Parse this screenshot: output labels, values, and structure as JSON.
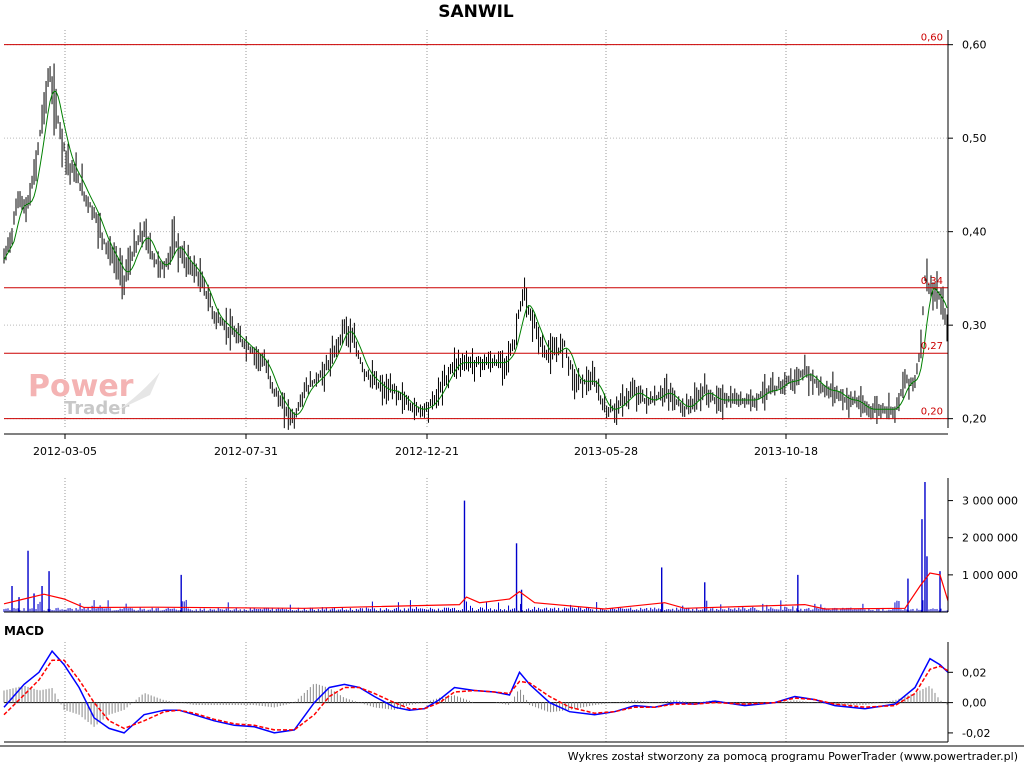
{
  "chart_data": [
    {
      "type": "line",
      "panel": "price",
      "title": "SANWIL",
      "x_ticks": [
        "2012-03-05",
        "2012-07-31",
        "2012-12-21",
        "2013-05-28",
        "2013-10-18"
      ],
      "y_ticks": [
        "0,60",
        "0,50",
        "0,40",
        "0,30",
        "0,20"
      ],
      "ylim": [
        0.19,
        0.605
      ],
      "horizontal_levels": [
        {
          "value": 0.6,
          "label": "0,60"
        },
        {
          "value": 0.34,
          "label": "0,34"
        },
        {
          "value": 0.27,
          "label": "0,27"
        },
        {
          "value": 0.2,
          "label": "0,20"
        }
      ],
      "price_keypoints": [
        [
          0,
          0.37
        ],
        [
          8,
          0.4
        ],
        [
          15,
          0.44
        ],
        [
          22,
          0.42
        ],
        [
          30,
          0.46
        ],
        [
          38,
          0.52
        ],
        [
          45,
          0.57
        ],
        [
          50,
          0.54
        ],
        [
          58,
          0.5
        ],
        [
          65,
          0.47
        ],
        [
          72,
          0.46
        ],
        [
          80,
          0.44
        ],
        [
          90,
          0.42
        ],
        [
          100,
          0.39
        ],
        [
          110,
          0.37
        ],
        [
          120,
          0.35
        ],
        [
          130,
          0.38
        ],
        [
          140,
          0.4
        ],
        [
          150,
          0.37
        ],
        [
          160,
          0.36
        ],
        [
          170,
          0.39
        ],
        [
          180,
          0.37
        ],
        [
          190,
          0.36
        ],
        [
          200,
          0.34
        ],
        [
          210,
          0.31
        ],
        [
          220,
          0.3
        ],
        [
          230,
          0.29
        ],
        [
          240,
          0.28
        ],
        [
          250,
          0.27
        ],
        [
          260,
          0.26
        ],
        [
          270,
          0.23
        ],
        [
          280,
          0.21
        ],
        [
          290,
          0.2
        ],
        [
          300,
          0.23
        ],
        [
          310,
          0.24
        ],
        [
          320,
          0.25
        ],
        [
          330,
          0.27
        ],
        [
          340,
          0.3
        ],
        [
          350,
          0.28
        ],
        [
          360,
          0.25
        ],
        [
          370,
          0.24
        ],
        [
          380,
          0.23
        ],
        [
          390,
          0.23
        ],
        [
          400,
          0.22
        ],
        [
          410,
          0.21
        ],
        [
          420,
          0.21
        ],
        [
          430,
          0.22
        ],
        [
          440,
          0.24
        ],
        [
          450,
          0.26
        ],
        [
          460,
          0.26
        ],
        [
          470,
          0.26
        ],
        [
          480,
          0.26
        ],
        [
          490,
          0.26
        ],
        [
          500,
          0.26
        ],
        [
          510,
          0.28
        ],
        [
          515,
          0.32
        ],
        [
          520,
          0.33
        ],
        [
          525,
          0.31
        ],
        [
          530,
          0.3
        ],
        [
          540,
          0.27
        ],
        [
          550,
          0.27
        ],
        [
          560,
          0.28
        ],
        [
          570,
          0.24
        ],
        [
          580,
          0.24
        ],
        [
          590,
          0.24
        ],
        [
          600,
          0.21
        ],
        [
          610,
          0.21
        ],
        [
          620,
          0.22
        ],
        [
          630,
          0.23
        ],
        [
          640,
          0.22
        ],
        [
          650,
          0.22
        ],
        [
          660,
          0.23
        ],
        [
          670,
          0.22
        ],
        [
          680,
          0.21
        ],
        [
          690,
          0.22
        ],
        [
          700,
          0.23
        ],
        [
          710,
          0.22
        ],
        [
          720,
          0.22
        ],
        [
          730,
          0.22
        ],
        [
          740,
          0.22
        ],
        [
          750,
          0.22
        ],
        [
          760,
          0.23
        ],
        [
          770,
          0.23
        ],
        [
          780,
          0.24
        ],
        [
          790,
          0.24
        ],
        [
          800,
          0.25
        ],
        [
          810,
          0.24
        ],
        [
          820,
          0.23
        ],
        [
          830,
          0.23
        ],
        [
          840,
          0.22
        ],
        [
          850,
          0.22
        ],
        [
          860,
          0.21
        ],
        [
          870,
          0.21
        ],
        [
          880,
          0.21
        ],
        [
          890,
          0.21
        ],
        [
          900,
          0.24
        ],
        [
          910,
          0.24
        ],
        [
          915,
          0.27
        ],
        [
          920,
          0.35
        ],
        [
          925,
          0.34
        ],
        [
          930,
          0.33
        ],
        [
          935,
          0.33
        ],
        [
          940,
          0.31
        ],
        [
          943,
          0.29
        ]
      ],
      "x_range": [
        0,
        943
      ]
    },
    {
      "type": "bar",
      "panel": "volume",
      "y_ticks": [
        "3 000 000",
        "2 000 000",
        "1 000 000"
      ],
      "ylim": [
        0,
        3500000
      ],
      "volume_spikes": [
        [
          8,
          700000
        ],
        [
          15,
          400000
        ],
        [
          24,
          1650000
        ],
        [
          30,
          500000
        ],
        [
          38,
          700000
        ],
        [
          45,
          1100000
        ],
        [
          177,
          1000000
        ],
        [
          460,
          3000000
        ],
        [
          512,
          1850000
        ],
        [
          517,
          600000
        ],
        [
          657,
          1200000
        ],
        [
          700,
          800000
        ],
        [
          793,
          1000000
        ],
        [
          903,
          900000
        ],
        [
          917,
          2500000
        ],
        [
          920,
          3500000
        ],
        [
          922,
          1500000
        ],
        [
          935,
          1100000
        ]
      ],
      "ma_keypoints": [
        [
          0,
          220000
        ],
        [
          20,
          350000
        ],
        [
          40,
          480000
        ],
        [
          60,
          350000
        ],
        [
          80,
          120000
        ],
        [
          150,
          130000
        ],
        [
          300,
          100000
        ],
        [
          455,
          200000
        ],
        [
          462,
          400000
        ],
        [
          475,
          250000
        ],
        [
          505,
          350000
        ],
        [
          515,
          550000
        ],
        [
          530,
          250000
        ],
        [
          600,
          80000
        ],
        [
          660,
          250000
        ],
        [
          680,
          100000
        ],
        [
          800,
          200000
        ],
        [
          820,
          80000
        ],
        [
          900,
          100000
        ],
        [
          915,
          700000
        ],
        [
          925,
          1050000
        ],
        [
          935,
          1000000
        ],
        [
          943,
          300000
        ]
      ]
    },
    {
      "type": "line",
      "panel": "macd",
      "title": "MACD",
      "y_ticks": [
        "0,02",
        "0,00",
        "-0,02"
      ],
      "ylim": [
        -0.026,
        0.04
      ],
      "series": [
        {
          "color": "#0000ff",
          "points": [
            [
              0,
              -0.003
            ],
            [
              20,
              0.012
            ],
            [
              35,
              0.02
            ],
            [
              48,
              0.034
            ],
            [
              60,
              0.025
            ],
            [
              75,
              0.01
            ],
            [
              90,
              -0.01
            ],
            [
              105,
              -0.017
            ],
            [
              120,
              -0.02
            ],
            [
              140,
              -0.008
            ],
            [
              160,
              -0.005
            ],
            [
              175,
              -0.005
            ],
            [
              190,
              -0.008
            ],
            [
              210,
              -0.012
            ],
            [
              230,
              -0.015
            ],
            [
              250,
              -0.016
            ],
            [
              270,
              -0.02
            ],
            [
              290,
              -0.018
            ],
            [
              310,
              0.0
            ],
            [
              325,
              0.01
            ],
            [
              340,
              0.012
            ],
            [
              355,
              0.01
            ],
            [
              370,
              0.004
            ],
            [
              390,
              -0.003
            ],
            [
              405,
              -0.005
            ],
            [
              420,
              -0.004
            ],
            [
              435,
              0.002
            ],
            [
              450,
              0.01
            ],
            [
              470,
              0.008
            ],
            [
              490,
              0.007
            ],
            [
              505,
              0.005
            ],
            [
              515,
              0.02
            ],
            [
              525,
              0.012
            ],
            [
              545,
              0.0
            ],
            [
              565,
              -0.006
            ],
            [
              590,
              -0.008
            ],
            [
              610,
              -0.006
            ],
            [
              630,
              -0.002
            ],
            [
              650,
              -0.003
            ],
            [
              670,
              0.0
            ],
            [
              690,
              -0.001
            ],
            [
              710,
              0.001
            ],
            [
              740,
              -0.002
            ],
            [
              770,
              0.0
            ],
            [
              790,
              0.004
            ],
            [
              810,
              0.002
            ],
            [
              830,
              -0.002
            ],
            [
              860,
              -0.004
            ],
            [
              890,
              -0.001
            ],
            [
              910,
              0.01
            ],
            [
              925,
              0.029
            ],
            [
              935,
              0.025
            ],
            [
              943,
              0.02
            ]
          ]
        },
        {
          "color": "#ff0000",
          "points": [
            [
              0,
              -0.008
            ],
            [
              20,
              0.005
            ],
            [
              35,
              0.015
            ],
            [
              48,
              0.028
            ],
            [
              60,
              0.028
            ],
            [
              75,
              0.015
            ],
            [
              90,
              0.0
            ],
            [
              105,
              -0.012
            ],
            [
              120,
              -0.017
            ],
            [
              140,
              -0.012
            ],
            [
              160,
              -0.006
            ],
            [
              175,
              -0.005
            ],
            [
              190,
              -0.007
            ],
            [
              210,
              -0.011
            ],
            [
              230,
              -0.014
            ],
            [
              250,
              -0.015
            ],
            [
              270,
              -0.018
            ],
            [
              290,
              -0.018
            ],
            [
              310,
              -0.008
            ],
            [
              325,
              0.004
            ],
            [
              340,
              0.01
            ],
            [
              355,
              0.01
            ],
            [
              370,
              0.006
            ],
            [
              390,
              0.0
            ],
            [
              405,
              -0.004
            ],
            [
              420,
              -0.004
            ],
            [
              435,
              0.0
            ],
            [
              450,
              0.007
            ],
            [
              470,
              0.008
            ],
            [
              490,
              0.007
            ],
            [
              505,
              0.006
            ],
            [
              515,
              0.014
            ],
            [
              525,
              0.013
            ],
            [
              545,
              0.004
            ],
            [
              565,
              -0.003
            ],
            [
              590,
              -0.007
            ],
            [
              610,
              -0.006
            ],
            [
              630,
              -0.003
            ],
            [
              650,
              -0.003
            ],
            [
              670,
              -0.001
            ],
            [
              690,
              -0.001
            ],
            [
              710,
              0.0
            ],
            [
              740,
              -0.001
            ],
            [
              770,
              0.0
            ],
            [
              790,
              0.003
            ],
            [
              810,
              0.002
            ],
            [
              830,
              -0.001
            ],
            [
              860,
              -0.003
            ],
            [
              890,
              -0.002
            ],
            [
              910,
              0.006
            ],
            [
              925,
              0.022
            ],
            [
              935,
              0.024
            ],
            [
              943,
              0.021
            ]
          ]
        }
      ]
    }
  ],
  "footer": "Wykres został stworzony za pomocą programu PowerTrader (www.powertrader.pl)",
  "watermark": {
    "line1": "Power",
    "line2": "Trader"
  },
  "colors": {
    "price": "#000000",
    "ma": "#008000",
    "level": "#cc0000",
    "volume": "#0000cc",
    "volume_ma": "#ff0000"
  }
}
